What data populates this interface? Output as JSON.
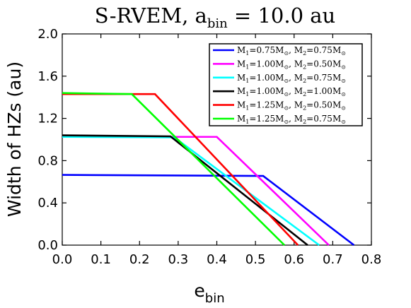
{
  "chart_data": {
    "type": "line",
    "title": {
      "main": "S-RVEM, a",
      "sub": "bin",
      "rest": " = 10.0 au"
    },
    "xlabel": {
      "main": "e",
      "sub": "bin"
    },
    "ylabel": "Width of HZs (au)",
    "xlim": [
      0,
      0.8
    ],
    "ylim": [
      0,
      2.0
    ],
    "xticks": [
      0,
      0.1,
      0.2,
      0.3,
      0.4,
      0.5,
      0.6,
      0.7,
      0.8
    ],
    "xtick_labels": [
      "0.0",
      "0.1",
      "0.2",
      "0.3",
      "0.4",
      "0.5",
      "0.6",
      "0.7",
      "0.8"
    ],
    "yticks": [
      0,
      0.4,
      0.8,
      1.2,
      1.6,
      2.0
    ],
    "ytick_labels": [
      "0.0",
      "0.4",
      "0.8",
      "1.2",
      "1.6",
      "2.0"
    ],
    "grid": false,
    "legend_position": "top-right",
    "series": [
      {
        "name": "M1=0.75M⊙, M2=0.75M⊙",
        "label_parts": [
          "M",
          "1",
          "=0.75M",
          "⊙",
          ", M",
          "2",
          "=0.75M",
          "⊙"
        ],
        "color": "#0000ff",
        "x": [
          0.0,
          0.52,
          0.755
        ],
        "y": [
          0.665,
          0.655,
          0.0
        ]
      },
      {
        "name": "M1=1.00M⊙, M2=0.50M⊙",
        "label_parts": [
          "M",
          "1",
          "=1.00M",
          "⊙",
          ", M",
          "2",
          "=0.50M",
          "⊙"
        ],
        "color": "#ff00ff",
        "x": [
          0.0,
          0.4,
          0.69
        ],
        "y": [
          1.025,
          1.025,
          0.0
        ]
      },
      {
        "name": "M1=1.00M⊙, M2=0.75M⊙",
        "label_parts": [
          "M",
          "1",
          "=1.00M",
          "⊙",
          ", M",
          "2",
          "=0.75M",
          "⊙"
        ],
        "color": "#00ffff",
        "x": [
          0.0,
          0.29,
          0.665
        ],
        "y": [
          1.025,
          1.02,
          0.0
        ]
      },
      {
        "name": "M1=1.00M⊙, M2=1.00M⊙",
        "label_parts": [
          "M",
          "1",
          "=1.00M",
          "⊙",
          ", M",
          "2",
          "=1.00M",
          "⊙"
        ],
        "color": "#000000",
        "x": [
          0.0,
          0.28,
          0.635
        ],
        "y": [
          1.04,
          1.03,
          0.0
        ]
      },
      {
        "name": "M1=1.25M⊙, M2=0.50M⊙",
        "label_parts": [
          "M",
          "1",
          "=1.25M",
          "⊙",
          ", M",
          "2",
          "=0.50M",
          "⊙"
        ],
        "color": "#ff0000",
        "x": [
          0.0,
          0.24,
          0.61
        ],
        "y": [
          1.43,
          1.43,
          0.0
        ]
      },
      {
        "name": "M1=1.25M⊙, M2=0.75M⊙",
        "label_parts": [
          "M",
          "1",
          "=1.25M",
          "⊙",
          ", M",
          "2",
          "=0.75M",
          "⊙"
        ],
        "color": "#00ff00",
        "x": [
          0.0,
          0.18,
          0.575
        ],
        "y": [
          1.44,
          1.43,
          0.0
        ]
      }
    ]
  }
}
